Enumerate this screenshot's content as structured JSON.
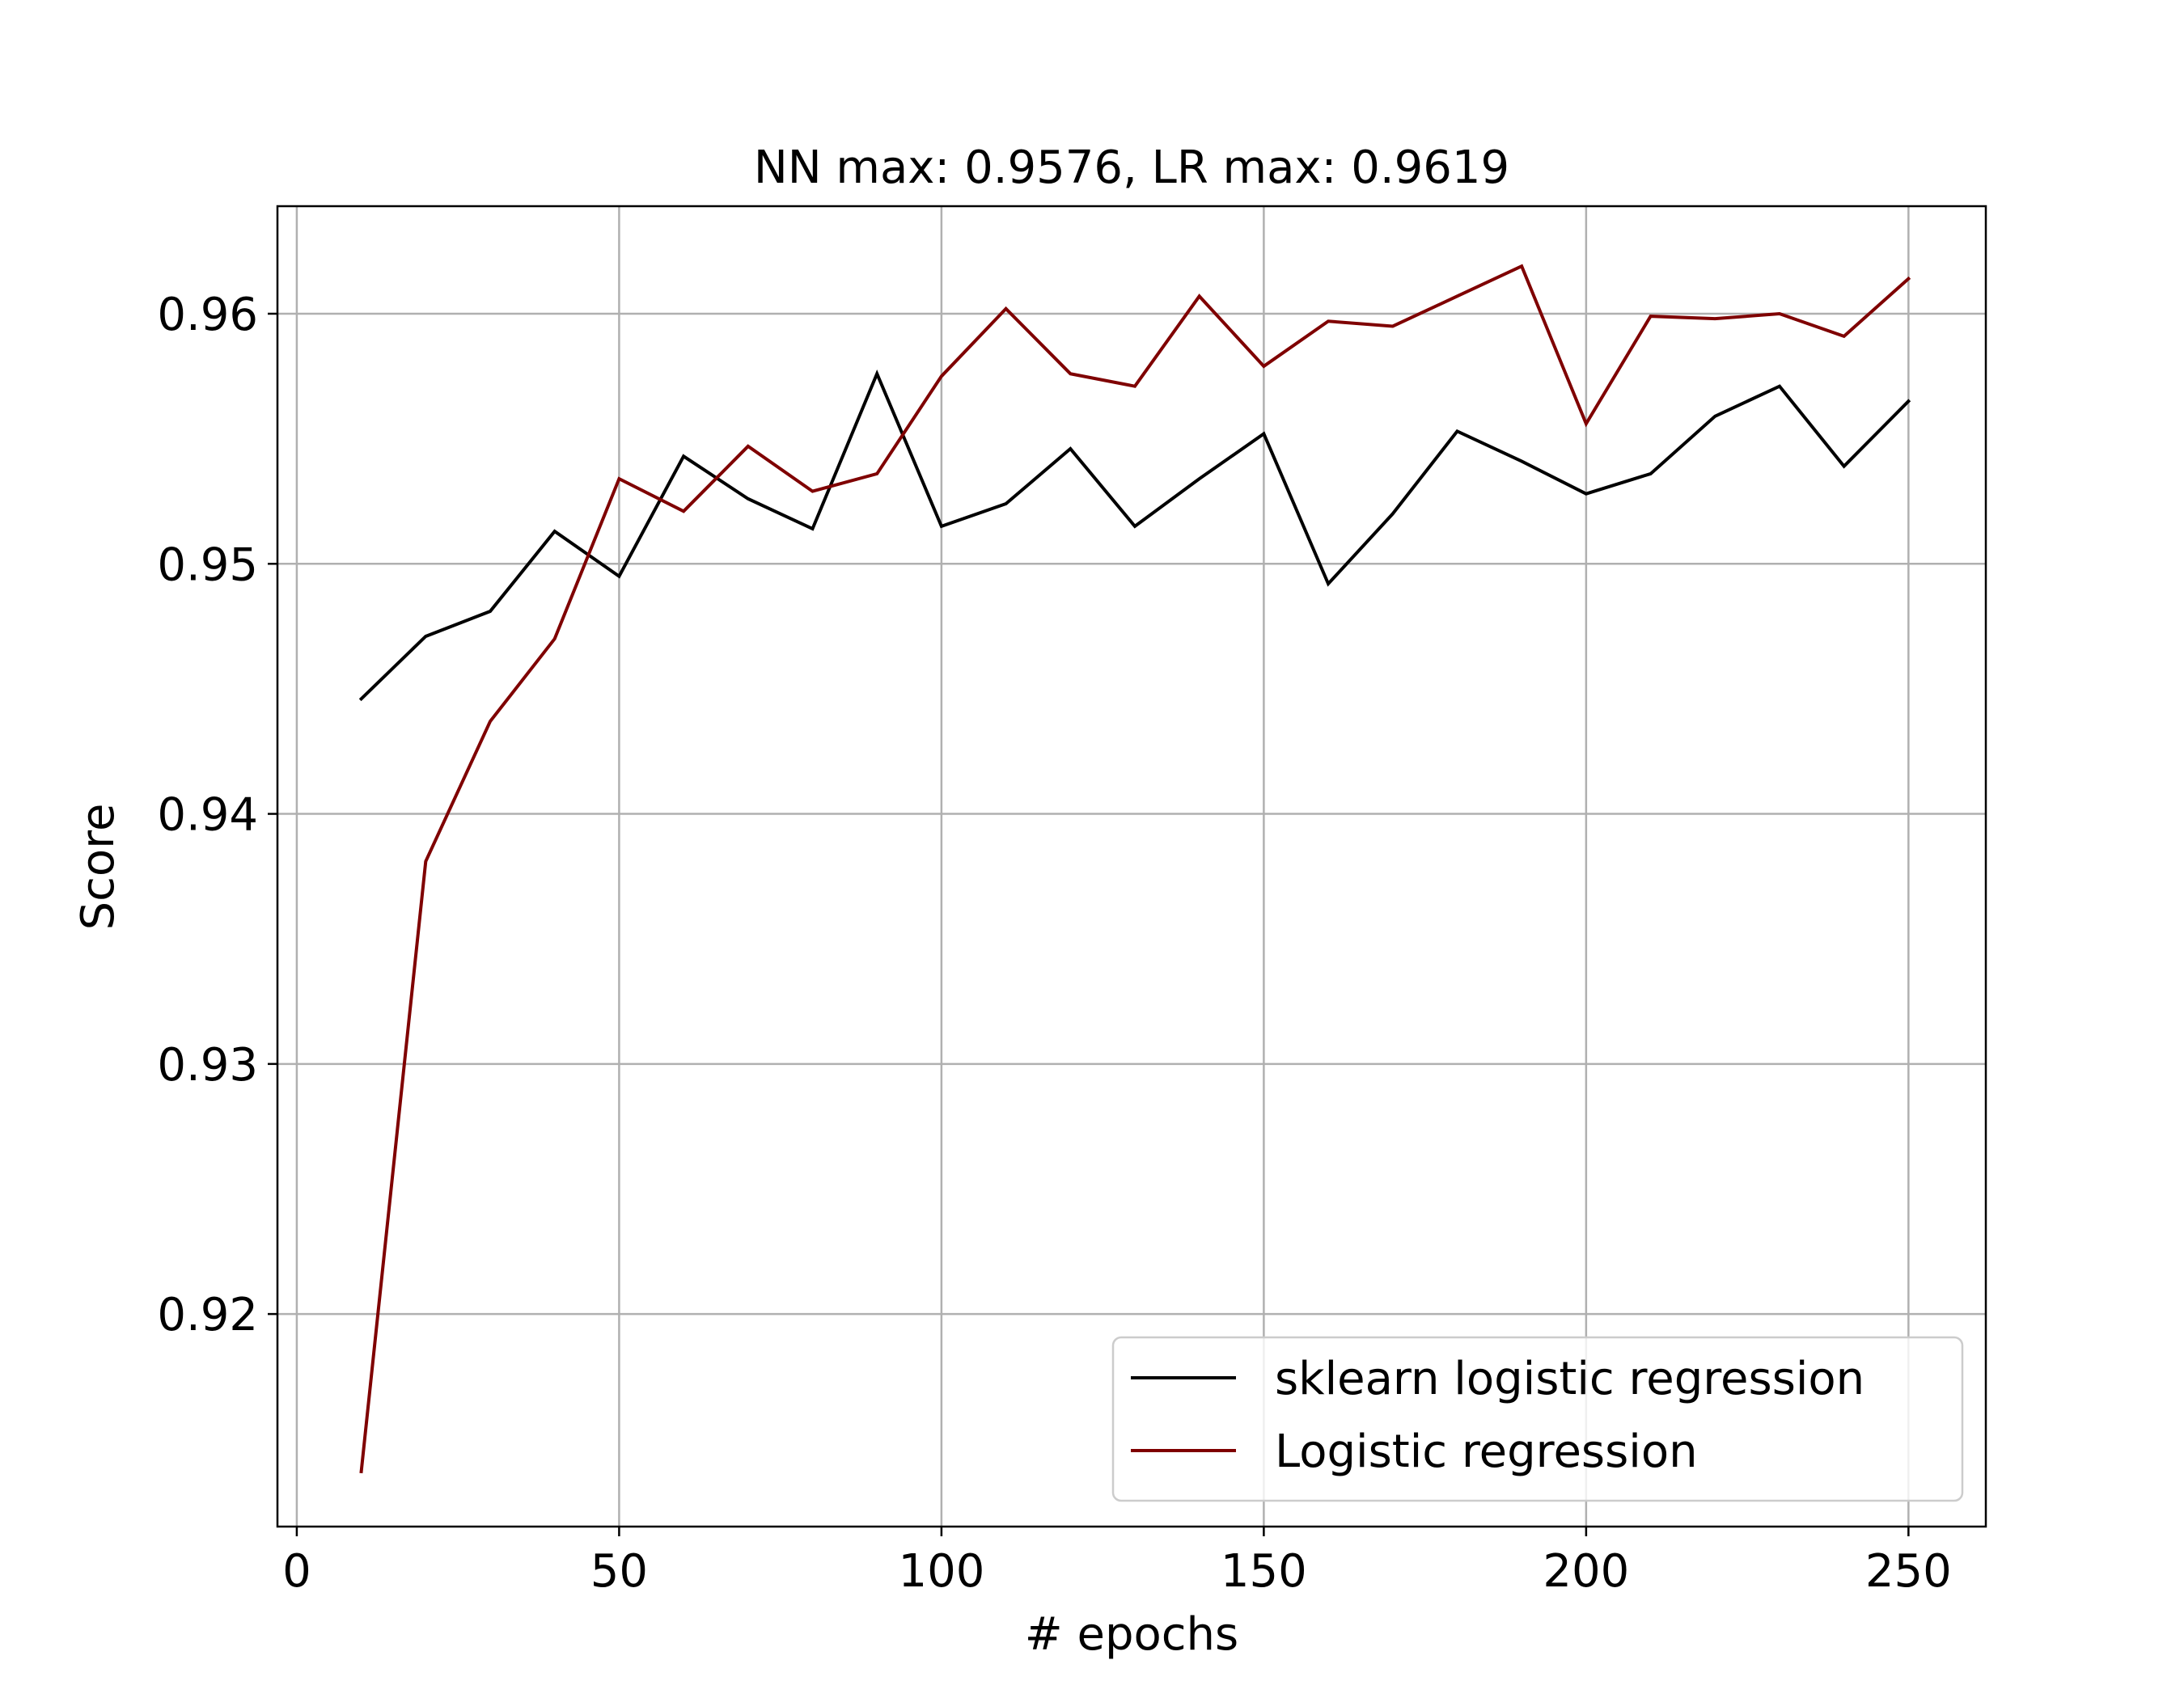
{
  "chart_data": {
    "type": "line",
    "title": "NN max: 0.9576, LR max: 0.9619",
    "xlabel": "# epochs",
    "ylabel": "Score",
    "xlim": [
      -3,
      262
    ],
    "ylim": [
      0.9115,
      0.9643
    ],
    "xticks": [
      0,
      50,
      100,
      150,
      200,
      250
    ],
    "xtick_labels": [
      "0",
      "50",
      "100",
      "150",
      "200",
      "250"
    ],
    "yticks": [
      0.92,
      0.93,
      0.94,
      0.95,
      0.96
    ],
    "ytick_labels": [
      "0.92",
      "0.93",
      "0.94",
      "0.95",
      "0.96"
    ],
    "grid": true,
    "legend_position": "lower-right",
    "x": [
      10,
      20,
      30,
      40,
      50,
      60,
      70,
      80,
      90,
      100,
      110,
      120,
      130,
      140,
      150,
      160,
      170,
      180,
      190,
      200,
      210,
      220,
      230,
      240,
      250
    ],
    "series": [
      {
        "name": "sklearn logistic regression",
        "color": "#000000",
        "values": [
          0.9446,
          0.9471,
          0.9481,
          0.9513,
          0.9495,
          0.9543,
          0.9526,
          0.9514,
          0.9576,
          0.9515,
          0.9524,
          0.9546,
          0.9515,
          0.9534,
          0.9552,
          0.9492,
          0.952,
          0.9553,
          0.9541,
          0.9528,
          0.9536,
          0.9559,
          0.9571,
          0.9539,
          0.9565
        ]
      },
      {
        "name": "Logistic regression",
        "color": "#7f0000",
        "values": [
          0.9137,
          0.9381,
          0.9437,
          0.947,
          0.9534,
          0.9521,
          0.9547,
          0.9529,
          0.9536,
          0.9575,
          0.9602,
          0.9576,
          0.9571,
          0.9607,
          0.9579,
          0.9597,
          0.9595,
          0.9607,
          0.9619,
          0.9556,
          0.9599,
          0.9598,
          0.96,
          0.9591,
          0.9614
        ]
      }
    ]
  }
}
